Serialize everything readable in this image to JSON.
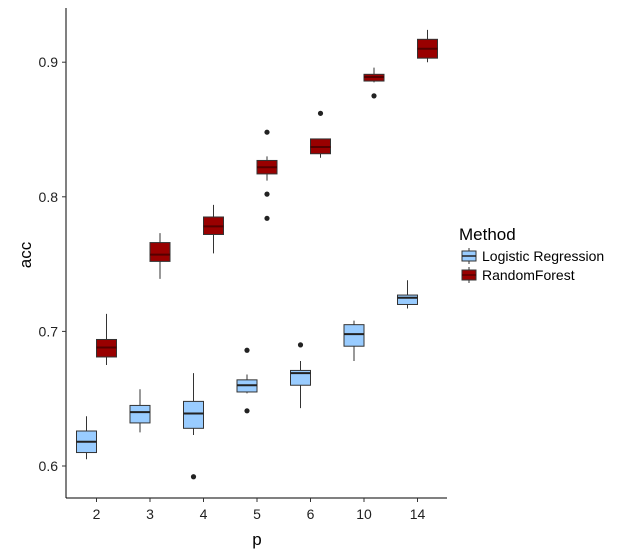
{
  "chart_data": {
    "type": "boxplot",
    "xlabel": "p",
    "ylabel": "acc",
    "categories": [
      "2",
      "3",
      "4",
      "5",
      "6",
      "10",
      "14"
    ],
    "ylim": [
      0.575,
      0.94
    ],
    "yticks": [
      0.6,
      0.7,
      0.8,
      0.9
    ],
    "ytick_labels": [
      "0.6",
      "0.7",
      "0.8",
      "0.9"
    ],
    "grid": false,
    "legend": {
      "title": "Method",
      "placement": "right",
      "entries": [
        "Logistic Regression",
        "RandomForest"
      ]
    },
    "series": [
      {
        "name": "Logistic Regression",
        "color": "#99ccff",
        "boxes": [
          {
            "lower": 0.605,
            "q1": 0.61,
            "median": 0.618,
            "q3": 0.626,
            "upper": 0.637,
            "outliers": []
          },
          {
            "lower": 0.625,
            "q1": 0.632,
            "median": 0.64,
            "q3": 0.645,
            "upper": 0.657,
            "outliers": []
          },
          {
            "lower": 0.623,
            "q1": 0.628,
            "median": 0.639,
            "q3": 0.648,
            "upper": 0.669,
            "outliers": [
              0.592
            ]
          },
          {
            "lower": 0.654,
            "q1": 0.655,
            "median": 0.66,
            "q3": 0.664,
            "upper": 0.668,
            "outliers": [
              0.686,
              0.641
            ]
          },
          {
            "lower": 0.643,
            "q1": 0.66,
            "median": 0.669,
            "q3": 0.671,
            "upper": 0.678,
            "outliers": [
              0.69
            ]
          },
          {
            "lower": 0.678,
            "q1": 0.689,
            "median": 0.698,
            "q3": 0.705,
            "upper": 0.708,
            "outliers": []
          },
          {
            "lower": 0.717,
            "q1": 0.72,
            "median": 0.725,
            "q3": 0.727,
            "upper": 0.738,
            "outliers": []
          }
        ]
      },
      {
        "name": "RandomForest",
        "color": "#990000",
        "boxes": [
          {
            "lower": 0.675,
            "q1": 0.681,
            "median": 0.688,
            "q3": 0.694,
            "upper": 0.713,
            "outliers": []
          },
          {
            "lower": 0.739,
            "q1": 0.752,
            "median": 0.757,
            "q3": 0.766,
            "upper": 0.773,
            "outliers": []
          },
          {
            "lower": 0.758,
            "q1": 0.772,
            "median": 0.778,
            "q3": 0.785,
            "upper": 0.794,
            "outliers": []
          },
          {
            "lower": 0.812,
            "q1": 0.817,
            "median": 0.822,
            "q3": 0.827,
            "upper": 0.83,
            "outliers": [
              0.848,
              0.802,
              0.784
            ]
          },
          {
            "lower": 0.829,
            "q1": 0.832,
            "median": 0.837,
            "q3": 0.843,
            "upper": 0.843,
            "outliers": [
              0.862
            ]
          },
          {
            "lower": 0.885,
            "q1": 0.886,
            "median": 0.889,
            "q3": 0.891,
            "upper": 0.896,
            "outliers": [
              0.875
            ]
          },
          {
            "lower": 0.9,
            "q1": 0.903,
            "median": 0.91,
            "q3": 0.917,
            "upper": 0.924,
            "outliers": []
          }
        ]
      }
    ]
  }
}
